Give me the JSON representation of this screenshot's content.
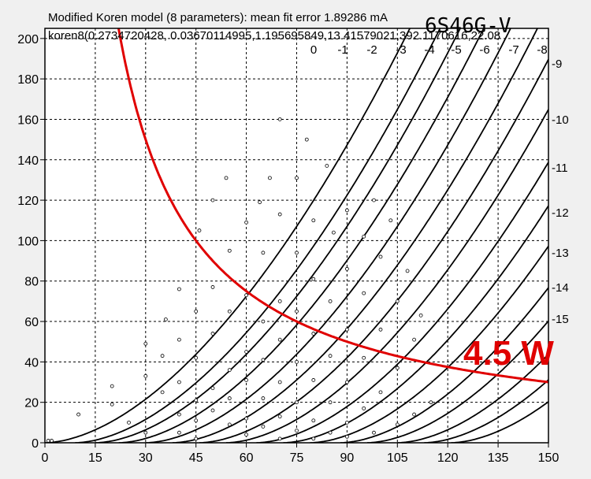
{
  "chart_data": {
    "type": "line",
    "title": "6S46G-V",
    "subtitle_line1": "Modified Koren model (8 parameters): mean fit error 1.89286 mA",
    "subtitle_line2": "koren8(0.2734720428, 0.03670114995,1.195695849,13.41579021,392.1170616,22.08",
    "x_ticks": [
      0,
      15,
      30,
      45,
      60,
      75,
      90,
      105,
      120,
      135,
      150
    ],
    "y_ticks": [
      0,
      20,
      40,
      60,
      80,
      100,
      120,
      140,
      160,
      180,
      200
    ],
    "xlim": [
      0,
      150
    ],
    "ylim": [
      0,
      205
    ],
    "grid": true,
    "grid_curve_labels": [
      "0",
      "-1",
      "-2",
      "-3",
      "-4",
      "-5",
      "-6",
      "-7",
      "-8",
      "-9",
      "-10",
      "-11",
      "-12",
      "-13",
      "-14",
      "-15"
    ],
    "grid_curve_label_text": [
      {
        "text": "0"
      },
      {
        "text": "-1"
      },
      {
        "text": "-2"
      },
      {
        "text": "-3"
      },
      {
        "text": "-4"
      },
      {
        "text": "-5"
      },
      {
        "text": "-6"
      },
      {
        "text": "-7"
      },
      {
        "text": "-8"
      },
      {
        "text": "-9"
      },
      {
        "text": "-10"
      },
      {
        "text": "-11"
      },
      {
        "text": "-12"
      },
      {
        "text": "-13"
      },
      {
        "text": "-14"
      },
      {
        "text": "-15"
      }
    ],
    "curve_shift_x": [
      0,
      9,
      15,
      22,
      30,
      38,
      46,
      54,
      63,
      71,
      79,
      88,
      96,
      105,
      113,
      121
    ],
    "curve_k": 0.056,
    "curve_exp": 1.75,
    "measured_points": [
      [
        1,
        1
      ],
      [
        2,
        1
      ],
      [
        10,
        14
      ],
      [
        20,
        28
      ],
      [
        30,
        49
      ],
      [
        36,
        61
      ],
      [
        40,
        76
      ],
      [
        46,
        105
      ],
      [
        50,
        120
      ],
      [
        54,
        131
      ],
      [
        20,
        19
      ],
      [
        30,
        33
      ],
      [
        35,
        43
      ],
      [
        40,
        51
      ],
      [
        45,
        65
      ],
      [
        50,
        77
      ],
      [
        55,
        95
      ],
      [
        60,
        109
      ],
      [
        64,
        119
      ],
      [
        67,
        131
      ],
      [
        70,
        160
      ],
      [
        25,
        10
      ],
      [
        35,
        25
      ],
      [
        40,
        30
      ],
      [
        45,
        42
      ],
      [
        50,
        54
      ],
      [
        55,
        65
      ],
      [
        60,
        73
      ],
      [
        65,
        94
      ],
      [
        70,
        113
      ],
      [
        75,
        131
      ],
      [
        78,
        150
      ],
      [
        30,
        5
      ],
      [
        40,
        14
      ],
      [
        45,
        21
      ],
      [
        50,
        27
      ],
      [
        55,
        36
      ],
      [
        60,
        45
      ],
      [
        65,
        60
      ],
      [
        70,
        70
      ],
      [
        75,
        94
      ],
      [
        80,
        110
      ],
      [
        84,
        137
      ],
      [
        40,
        5
      ],
      [
        45,
        11
      ],
      [
        50,
        16
      ],
      [
        55,
        22
      ],
      [
        60,
        31
      ],
      [
        65,
        41
      ],
      [
        70,
        51
      ],
      [
        75,
        65
      ],
      [
        80,
        81
      ],
      [
        86,
        104
      ],
      [
        90,
        115
      ],
      [
        45,
        2
      ],
      [
        55,
        9
      ],
      [
        60,
        12
      ],
      [
        65,
        22
      ],
      [
        70,
        30
      ],
      [
        75,
        40
      ],
      [
        80,
        54
      ],
      [
        85,
        70
      ],
      [
        90,
        86
      ],
      [
        95,
        102
      ],
      [
        98,
        120
      ],
      [
        60,
        4
      ],
      [
        65,
        8
      ],
      [
        70,
        13
      ],
      [
        75,
        20
      ],
      [
        80,
        31
      ],
      [
        85,
        43
      ],
      [
        90,
        56
      ],
      [
        95,
        74
      ],
      [
        100,
        92
      ],
      [
        103,
        110
      ],
      [
        70,
        2
      ],
      [
        75,
        6
      ],
      [
        80,
        11
      ],
      [
        85,
        20
      ],
      [
        90,
        30
      ],
      [
        95,
        42
      ],
      [
        100,
        56
      ],
      [
        105,
        70
      ],
      [
        108,
        85
      ],
      [
        80,
        2
      ],
      [
        85,
        5
      ],
      [
        90,
        10
      ],
      [
        95,
        17
      ],
      [
        100,
        25
      ],
      [
        105,
        37
      ],
      [
        110,
        51
      ],
      [
        112,
        63
      ],
      [
        90,
        3
      ],
      [
        98,
        5
      ],
      [
        105,
        9
      ],
      [
        110,
        14
      ],
      [
        115,
        20
      ]
    ],
    "load_line": {
      "label": "4.5 W",
      "power_watts": 4.5,
      "color": "#e00000"
    },
    "curve_color": "#000000"
  }
}
